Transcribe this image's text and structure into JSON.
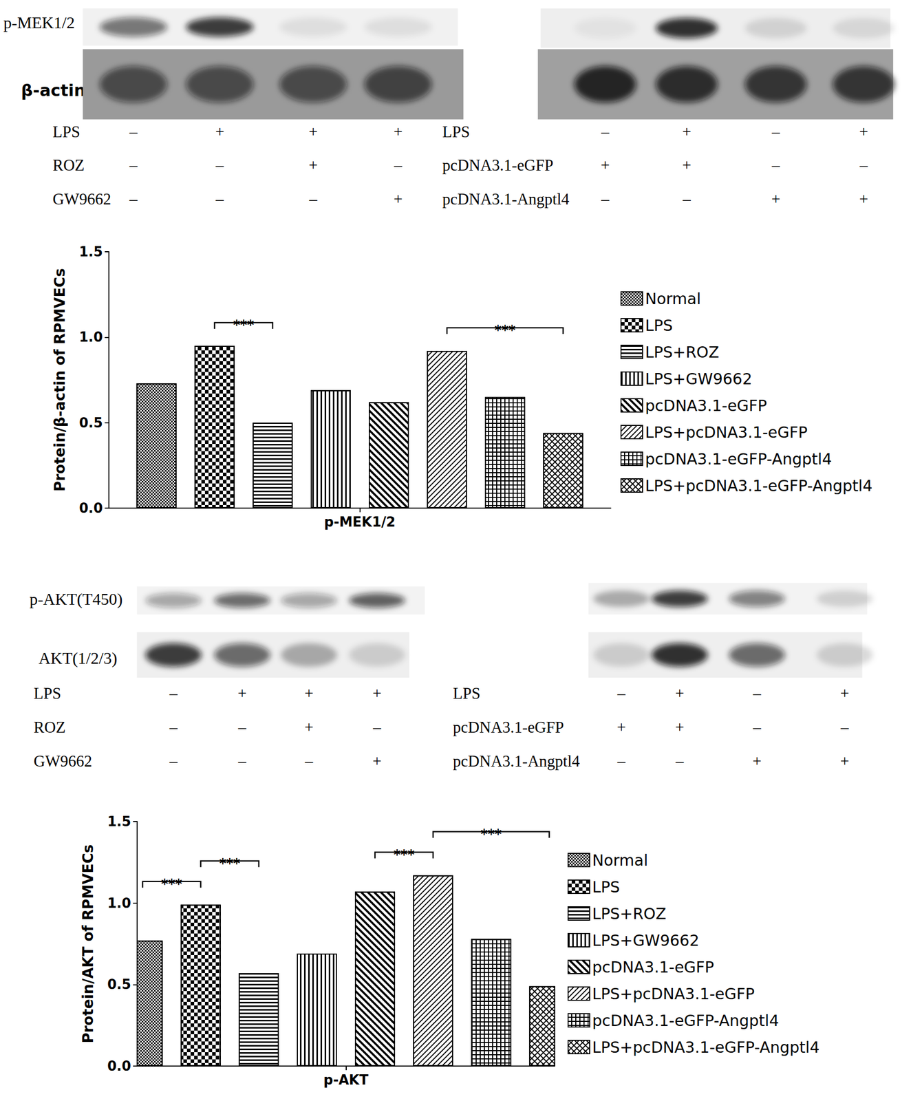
{
  "blots": [
    {
      "proteins": [
        "p-MEK1/2",
        "β-actin"
      ],
      "panels": [
        {
          "bands": [
            [
              0.55,
              0.8,
              0.08,
              0.08
            ],
            [
              0.6,
              0.6,
              0.6,
              0.65
            ]
          ],
          "conditions": [
            {
              "label": "LPS",
              "signs": [
                "–",
                "+",
                "+",
                "+"
              ]
            },
            {
              "label": "ROZ",
              "signs": [
                "–",
                "–",
                "+",
                "–"
              ]
            },
            {
              "label": "GW9662",
              "signs": [
                "–",
                "–",
                "–",
                "+"
              ]
            }
          ]
        },
        {
          "bands": [
            [
              0.05,
              0.85,
              0.12,
              0.1
            ],
            [
              0.85,
              0.8,
              0.75,
              0.75
            ]
          ],
          "conditions": [
            {
              "label": "LPS",
              "signs": [
                "–",
                "+",
                "–",
                "+"
              ]
            },
            {
              "label": "pcDNA3.1-eGFP",
              "signs": [
                "+",
                "+",
                "–",
                "–"
              ]
            },
            {
              "label": "pcDNA3.1-Angptl4",
              "signs": [
                "–",
                "–",
                "+",
                "+"
              ]
            }
          ]
        }
      ]
    },
    {
      "proteins": [
        "p-AKT(T450)",
        "AKT(1/2/3)"
      ],
      "panels": [
        {
          "bands": [
            [
              0.35,
              0.6,
              0.35,
              0.65
            ],
            [
              0.8,
              0.6,
              0.3,
              0.15
            ]
          ],
          "conditions": [
            {
              "label": "LPS",
              "signs": [
                "–",
                "+",
                "+",
                "+"
              ]
            },
            {
              "label": "ROZ",
              "signs": [
                "–",
                "–",
                "+",
                "–"
              ]
            },
            {
              "label": "GW9662",
              "signs": [
                "–",
                "–",
                "–",
                "+"
              ]
            }
          ]
        },
        {
          "bands": [
            [
              0.3,
              0.8,
              0.5,
              0.15
            ],
            [
              0.15,
              0.85,
              0.6,
              0.15
            ]
          ],
          "conditions": [
            {
              "label": "LPS",
              "signs": [
                "–",
                "+",
                "–",
                "+"
              ]
            },
            {
              "label": "pcDNA3.1-eGFP",
              "signs": [
                "+",
                "+",
                "–",
                "–"
              ]
            },
            {
              "label": "pcDNA3.1-Angptl4",
              "signs": [
                "–",
                "–",
                "+",
                "+"
              ]
            }
          ]
        }
      ]
    }
  ],
  "chart_data": [
    {
      "type": "bar",
      "y_label": "Protein/β-actin of RPMVECs",
      "categories": [
        "p-MEK1/2"
      ],
      "series": [
        {
          "name": "Normal",
          "color": "#000000",
          "values": [
            0.73
          ]
        },
        {
          "name": "LPS",
          "color": "#000000",
          "values": [
            0.95
          ]
        },
        {
          "name": "LPS+ROZ",
          "color": "#000000",
          "values": [
            0.5
          ]
        },
        {
          "name": "LPS+GW9662",
          "color": "#000000",
          "values": [
            0.69
          ]
        },
        {
          "name": "pcDNA3.1-eGFP",
          "color": "#000000",
          "values": [
            0.62
          ]
        },
        {
          "name": "LPS+pcDNA3.1-eGFP",
          "color": "#000000",
          "values": [
            0.92
          ]
        },
        {
          "name": "pcDNA3.1-eGFP-Angptl4",
          "color": "#000000",
          "values": [
            0.65
          ]
        },
        {
          "name": "LPS+pcDNA3.1-eGFP-Angptl4",
          "color": "#000000",
          "values": [
            0.44
          ]
        }
      ],
      "ylim": [
        0,
        1.5
      ],
      "yticks": [
        {
          "value": 0,
          "label": "0.0"
        },
        {
          "value": 0.5,
          "label": "0.5"
        },
        {
          "value": 1,
          "label": "1.0"
        },
        {
          "value": 1.5,
          "label": "1.5"
        }
      ],
      "grid": false,
      "legend": "right",
      "annotations": [
        {
          "from": "LPS",
          "to": "LPS+ROZ",
          "text": "***"
        },
        {
          "from": "LPS+pcDNA3.1-eGFP",
          "to": "LPS+pcDNA3.1-eGFP-Angptl4",
          "text": "***"
        }
      ]
    },
    {
      "type": "bar",
      "y_label": "Protein/AKT of RPMVECs",
      "categories": [
        "p-AKT"
      ],
      "series": [
        {
          "name": "Normal",
          "color": "#000000",
          "values": [
            0.77
          ]
        },
        {
          "name": "LPS",
          "color": "#000000",
          "values": [
            0.99
          ]
        },
        {
          "name": "LPS+ROZ",
          "color": "#000000",
          "values": [
            0.57
          ]
        },
        {
          "name": "LPS+GW9662",
          "color": "#000000",
          "values": [
            0.69
          ]
        },
        {
          "name": "pcDNA3.1-eGFP",
          "color": "#000000",
          "values": [
            1.07
          ]
        },
        {
          "name": "LPS+pcDNA3.1-eGFP",
          "color": "#000000",
          "values": [
            1.17
          ]
        },
        {
          "name": "pcDNA3.1-eGFP-Angptl4",
          "color": "#000000",
          "values": [
            0.78
          ]
        },
        {
          "name": "LPS+pcDNA3.1-eGFP-Angptl4",
          "color": "#000000",
          "values": [
            0.49
          ]
        }
      ],
      "ylim": [
        0,
        1.5
      ],
      "yticks": [
        {
          "value": 0,
          "label": "0.0"
        },
        {
          "value": 0.5,
          "label": "0.5"
        },
        {
          "value": 1,
          "label": "1.0"
        },
        {
          "value": 1.5,
          "label": "1.5"
        }
      ],
      "grid": false,
      "legend": "right",
      "annotations": [
        {
          "from": "Normal",
          "to": "LPS",
          "text": "***"
        },
        {
          "from": "LPS",
          "to": "LPS+ROZ",
          "text": "***"
        },
        {
          "from": "pcDNA3.1-eGFP",
          "to": "LPS+pcDNA3.1-eGFP",
          "text": "***"
        },
        {
          "from": "LPS+pcDNA3.1-eGFP",
          "to": "LPS+pcDNA3.1-eGFP-Angptl4",
          "text": "***"
        }
      ]
    }
  ]
}
